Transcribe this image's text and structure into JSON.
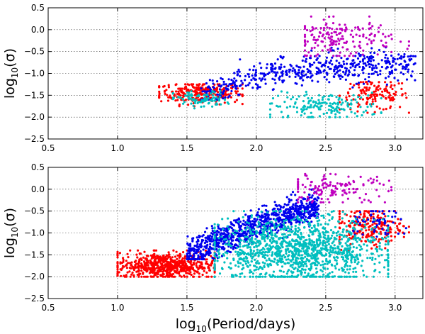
{
  "chart_data": [
    {
      "type": "scatter",
      "title": "",
      "xlabel": "",
      "ylabel_base": "log",
      "ylabel_sub": "10",
      "ylabel_arg": "(σ)",
      "xlim": [
        0.5,
        3.2
      ],
      "ylim": [
        -2.5,
        0.5
      ],
      "xticks": [
        "0.5",
        "1.0",
        "1.5",
        "2.0",
        "2.5",
        "3.0"
      ],
      "yticks": [
        "0.5",
        "0.0",
        "−0.5",
        "−1.0",
        "−1.5",
        "−2.0",
        "−2.5"
      ],
      "grid": true,
      "series": [
        {
          "color": "#ff0000",
          "clusters": [
            {
              "x": [
                1.3,
                1.9
              ],
              "y": [
                -1.75,
                -1.25
              ],
              "n": 280,
              "cx": 1.6,
              "cy": -1.45
            },
            {
              "x": [
                2.6,
                3.1
              ],
              "y": [
                -1.9,
                -1.2
              ],
              "n": 140,
              "cx": 2.85,
              "cy": -1.5
            }
          ]
        },
        {
          "color": "#0000ee",
          "clusters": [
            {
              "x": [
                1.6,
                3.15
              ],
              "y": [
                -1.6,
                -0.4
              ],
              "n": 520,
              "trend": [
                [
                  1.6,
                  -1.5
                ],
                [
                  2.0,
                  -1.1
                ],
                [
                  2.5,
                  -0.85
                ],
                [
                  3.1,
                  -0.8
                ]
              ]
            }
          ]
        },
        {
          "color": "#00bfbf",
          "clusters": [
            {
              "x": [
                1.4,
                1.8
              ],
              "y": [
                -1.8,
                -1.4
              ],
              "n": 90,
              "cx": 1.6,
              "cy": -1.6
            },
            {
              "x": [
                2.1,
                2.9
              ],
              "y": [
                -2.0,
                -1.4
              ],
              "n": 170,
              "cx": 2.5,
              "cy": -1.75
            }
          ]
        },
        {
          "color": "#bf00bf",
          "clusters": [
            {
              "x": [
                2.35,
                3.1
              ],
              "y": [
                -0.6,
                0.3
              ],
              "n": 180,
              "cx": 2.6,
              "cy": -0.2
            }
          ]
        }
      ]
    },
    {
      "type": "scatter",
      "title": "",
      "xlabel_base": "log",
      "xlabel_sub": "10",
      "xlabel_arg": "(Period/days)",
      "ylabel_base": "log",
      "ylabel_sub": "10",
      "ylabel_arg": "(σ)",
      "xlim": [
        0.5,
        3.2
      ],
      "ylim": [
        -2.5,
        0.5
      ],
      "xticks": [
        "0.5",
        "1.0",
        "1.5",
        "2.0",
        "2.5",
        "3.0"
      ],
      "yticks": [
        "0.5",
        "0.0",
        "−0.5",
        "−1.0",
        "−1.5",
        "−2.0",
        "−2.5"
      ],
      "grid": true,
      "series": [
        {
          "color": "#ff0000",
          "clusters": [
            {
              "x": [
                1.0,
                1.7
              ],
              "y": [
                -2.0,
                -1.4
              ],
              "n": 650,
              "cx": 1.35,
              "cy": -1.75
            },
            {
              "x": [
                2.6,
                3.1
              ],
              "y": [
                -1.4,
                -0.5
              ],
              "n": 220,
              "cx": 2.8,
              "cy": -0.85
            }
          ]
        },
        {
          "color": "#0000ee",
          "clusters": [
            {
              "x": [
                1.5,
                2.45
              ],
              "y": [
                -1.6,
                0.0
              ],
              "n": 900,
              "trend": [
                [
                  1.5,
                  -1.5
                ],
                [
                  2.0,
                  -0.8
                ],
                [
                  2.4,
                  -0.4
                ]
              ]
            },
            {
              "x": [
                2.7,
                3.15
              ],
              "y": [
                -1.2,
                -0.5
              ],
              "n": 60,
              "cx": 2.9,
              "cy": -0.8
            }
          ]
        },
        {
          "color": "#00bfbf",
          "clusters": [
            {
              "x": [
                1.7,
                2.95
              ],
              "y": [
                -2.0,
                -0.5
              ],
              "n": 1300,
              "cx": 2.3,
              "cy": -1.4
            }
          ]
        },
        {
          "color": "#bf00bf",
          "clusters": [
            {
              "x": [
                2.3,
                3.1
              ],
              "y": [
                -0.3,
                0.35
              ],
              "n": 140,
              "cx": 2.55,
              "cy": 0.0
            }
          ]
        }
      ]
    }
  ]
}
